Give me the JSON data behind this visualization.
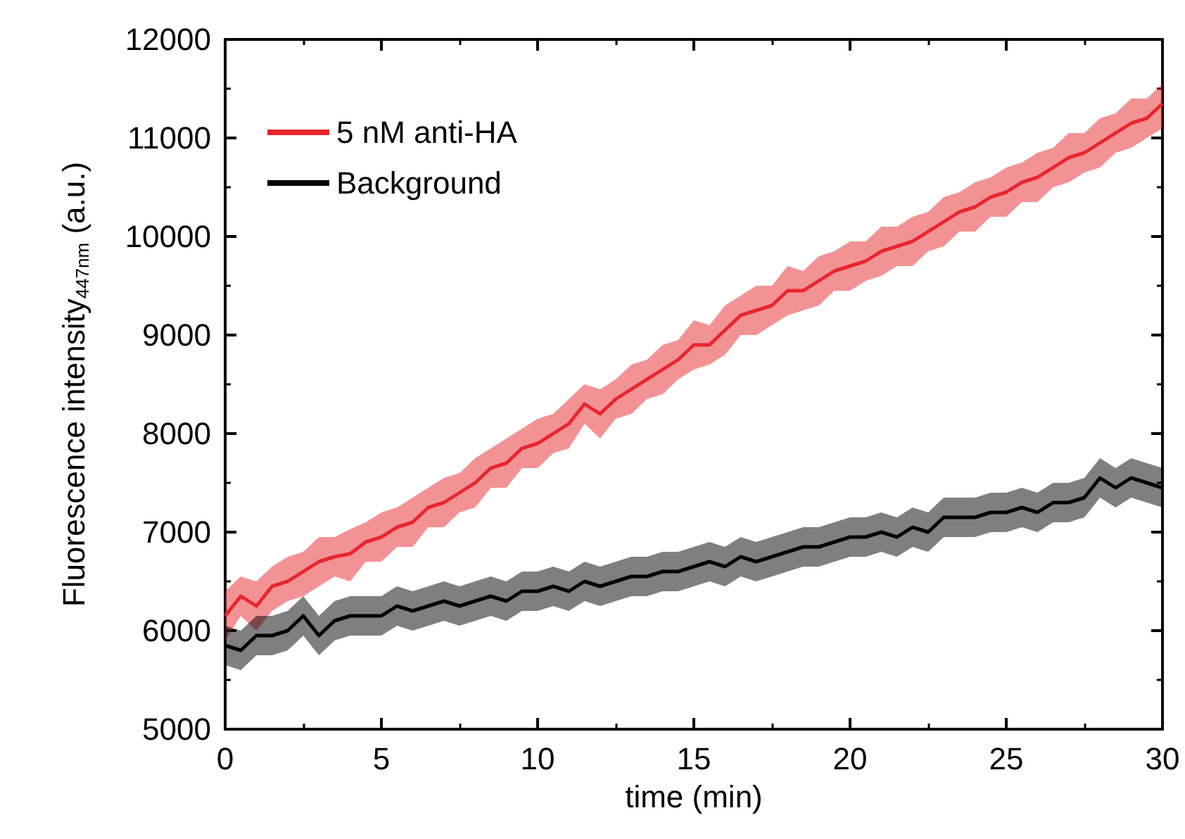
{
  "chart_data": {
    "type": "line",
    "xlabel": "time (min)",
    "ylabel": "Fluorescence intensity$_{447nm}$ (a.u.)",
    "x": [
      0,
      0.5,
      1,
      1.5,
      2,
      2.5,
      3,
      3.5,
      4,
      4.5,
      5,
      5.5,
      6,
      6.5,
      7,
      7.5,
      8,
      8.5,
      9,
      9.5,
      10,
      10.5,
      11,
      11.5,
      12,
      12.5,
      13,
      13.5,
      14,
      14.5,
      15,
      15.5,
      16,
      16.5,
      17,
      17.5,
      18,
      18.5,
      19,
      19.5,
      20,
      20.5,
      21,
      21.5,
      22,
      22.5,
      23,
      23.5,
      24,
      24.5,
      25,
      25.5,
      26,
      26.5,
      27,
      27.5,
      28,
      28.5,
      29,
      29.5,
      30
    ],
    "series": [
      {
        "name": "5 nM anti-HA",
        "color": "#e8262c",
        "values": [
          6150,
          6350,
          6250,
          6450,
          6500,
          6600,
          6700,
          6750,
          6780,
          6900,
          6950,
          7050,
          7100,
          7250,
          7300,
          7400,
          7500,
          7650,
          7700,
          7850,
          7900,
          8000,
          8100,
          8300,
          8200,
          8350,
          8450,
          8550,
          8650,
          8750,
          8900,
          8900,
          9050,
          9200,
          9250,
          9300,
          9450,
          9450,
          9550,
          9650,
          9700,
          9750,
          9850,
          9900,
          9950,
          10050,
          10150,
          10250,
          10300,
          10400,
          10450,
          10550,
          10600,
          10700,
          10800,
          10850,
          10950,
          11050,
          11150,
          11200,
          11350
        ],
        "lower": [
          5900,
          6150,
          6000,
          6200,
          6300,
          6350,
          6450,
          6550,
          6500,
          6700,
          6700,
          6850,
          6850,
          7050,
          7050,
          7200,
          7250,
          7450,
          7450,
          7650,
          7650,
          7800,
          7850,
          8100,
          7950,
          8150,
          8200,
          8350,
          8400,
          8550,
          8650,
          8700,
          8800,
          9000,
          9000,
          9100,
          9200,
          9250,
          9300,
          9450,
          9450,
          9550,
          9600,
          9700,
          9700,
          9850,
          9900,
          10050,
          10050,
          10200,
          10200,
          10350,
          10350,
          10500,
          10550,
          10650,
          10700,
          10850,
          10900,
          11000,
          11100
        ],
        "upper": [
          6400,
          6550,
          6500,
          6650,
          6750,
          6800,
          6950,
          6950,
          7030,
          7100,
          7200,
          7250,
          7350,
          7450,
          7550,
          7600,
          7750,
          7850,
          7950,
          8050,
          8150,
          8200,
          8350,
          8500,
          8450,
          8550,
          8700,
          8750,
          8900,
          8950,
          9150,
          9100,
          9300,
          9400,
          9500,
          9500,
          9700,
          9650,
          9800,
          9850,
          9950,
          9950,
          10100,
          10100,
          10200,
          10250,
          10400,
          10450,
          10550,
          10600,
          10700,
          10750,
          10850,
          10900,
          11050,
          11050,
          11200,
          11250,
          11400,
          11400,
          11550
        ]
      },
      {
        "name": "Background",
        "color": "#000000",
        "values": [
          5850,
          5800,
          5950,
          5950,
          6000,
          6150,
          5950,
          6100,
          6150,
          6150,
          6150,
          6250,
          6200,
          6250,
          6300,
          6250,
          6300,
          6350,
          6300,
          6400,
          6400,
          6450,
          6400,
          6500,
          6450,
          6500,
          6550,
          6550,
          6600,
          6600,
          6650,
          6700,
          6650,
          6750,
          6700,
          6750,
          6800,
          6850,
          6850,
          6900,
          6950,
          6950,
          7000,
          6950,
          7050,
          7000,
          7150,
          7150,
          7150,
          7200,
          7200,
          7250,
          7200,
          7300,
          7300,
          7350,
          7550,
          7450,
          7550,
          7500,
          7450
        ],
        "lower": [
          5650,
          5600,
          5750,
          5750,
          5800,
          5950,
          5750,
          5900,
          5950,
          5950,
          5950,
          6050,
          6000,
          6050,
          6100,
          6050,
          6100,
          6150,
          6100,
          6200,
          6200,
          6250,
          6200,
          6300,
          6250,
          6300,
          6350,
          6350,
          6400,
          6400,
          6450,
          6500,
          6450,
          6550,
          6500,
          6550,
          6600,
          6650,
          6650,
          6700,
          6750,
          6750,
          6800,
          6750,
          6850,
          6800,
          6950,
          6950,
          6950,
          7000,
          7000,
          7050,
          7000,
          7100,
          7100,
          7150,
          7350,
          7250,
          7350,
          7300,
          7250
        ],
        "upper": [
          6050,
          6000,
          6150,
          6150,
          6200,
          6350,
          6150,
          6300,
          6350,
          6350,
          6350,
          6450,
          6400,
          6450,
          6500,
          6450,
          6500,
          6550,
          6500,
          6600,
          6600,
          6650,
          6600,
          6700,
          6650,
          6700,
          6750,
          6750,
          6800,
          6800,
          6850,
          6900,
          6850,
          6950,
          6900,
          6950,
          7000,
          7050,
          7050,
          7100,
          7150,
          7150,
          7200,
          7150,
          7250,
          7200,
          7350,
          7350,
          7350,
          7400,
          7400,
          7450,
          7400,
          7500,
          7500,
          7550,
          7750,
          7650,
          7750,
          7700,
          7650
        ]
      }
    ],
    "xlim": [
      0,
      30
    ],
    "xticks": [
      0,
      5,
      10,
      15,
      20,
      25,
      30
    ],
    "ylim": [
      5000,
      12000
    ],
    "yticks": [
      5000,
      6000,
      7000,
      8000,
      9000,
      10000,
      11000,
      12000
    ],
    "grid": false,
    "legend": "top left",
    "marker": "none",
    "line_style": "solid"
  }
}
